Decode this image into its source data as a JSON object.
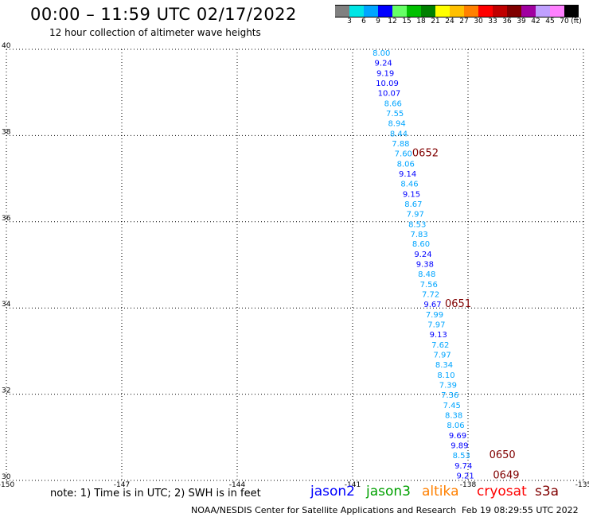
{
  "header": {
    "title": "00:00 – 11:59 UTC 02/17/2022",
    "subtitle": "12 hour collection of altimeter wave heights"
  },
  "color_scale": {
    "colors": [
      "#808080",
      "#00e5e5",
      "#00a5ff",
      "#0000ff",
      "#66ff66",
      "#00c000",
      "#008000",
      "#ffff00",
      "#ffc000",
      "#ff8000",
      "#ff0000",
      "#c00000",
      "#800000",
      "#a000a0",
      "#c0a0ff",
      "#ff80ff",
      "#000000"
    ],
    "labels": [
      "3",
      "6",
      "9",
      "12",
      "15",
      "18",
      "21",
      "24",
      "27",
      "30",
      "33",
      "36",
      "39",
      "42",
      "45",
      "70"
    ],
    "unit": "(ft)"
  },
  "map": {
    "lon_range": [
      -150,
      -135
    ],
    "lat_range": [
      30,
      40
    ],
    "lon_ticks": [
      "-150",
      "-147",
      "-144",
      "-141",
      "-138",
      "-135"
    ],
    "lat_ticks": [
      "30",
      "32",
      "34",
      "36",
      "38",
      "40"
    ],
    "gridlines": "dotted"
  },
  "track": {
    "points": [
      {
        "v": "8.00",
        "lon": -140.25,
        "lat": 39.85,
        "c": "#00a5ff"
      },
      {
        "v": "9.24",
        "lon": -140.2,
        "lat": 39.62,
        "c": "#0000ff"
      },
      {
        "v": "9.19",
        "lon": -140.15,
        "lat": 39.38,
        "c": "#0000ff"
      },
      {
        "v": "10.09",
        "lon": -140.1,
        "lat": 39.15,
        "c": "#0000ff"
      },
      {
        "v": "10.07",
        "lon": -140.05,
        "lat": 38.92,
        "c": "#0000ff"
      },
      {
        "v": "8.66",
        "lon": -139.95,
        "lat": 38.68,
        "c": "#00a5ff"
      },
      {
        "v": "7.55",
        "lon": -139.9,
        "lat": 38.45,
        "c": "#00a5ff"
      },
      {
        "v": "8.94",
        "lon": -139.85,
        "lat": 38.22,
        "c": "#00a5ff"
      },
      {
        "v": "8.44",
        "lon": -139.8,
        "lat": 37.98,
        "c": "#00a5ff"
      },
      {
        "v": "7.88",
        "lon": -139.75,
        "lat": 37.75,
        "c": "#00a5ff"
      },
      {
        "v": "7.60",
        "lon": -139.68,
        "lat": 37.52,
        "c": "#00a5ff"
      },
      {
        "v": "8.06",
        "lon": -139.62,
        "lat": 37.28,
        "c": "#00a5ff"
      },
      {
        "v": "9.14",
        "lon": -139.57,
        "lat": 37.05,
        "c": "#0000ff"
      },
      {
        "v": "8.46",
        "lon": -139.52,
        "lat": 36.82,
        "c": "#00a5ff"
      },
      {
        "v": "9.15",
        "lon": -139.47,
        "lat": 36.58,
        "c": "#0000ff"
      },
      {
        "v": "8.67",
        "lon": -139.42,
        "lat": 36.35,
        "c": "#00a5ff"
      },
      {
        "v": "7.97",
        "lon": -139.37,
        "lat": 36.12,
        "c": "#00a5ff"
      },
      {
        "v": "8.53",
        "lon": -139.32,
        "lat": 35.88,
        "c": "#00a5ff"
      },
      {
        "v": "7.83",
        "lon": -139.27,
        "lat": 35.65,
        "c": "#00a5ff"
      },
      {
        "v": "8.60",
        "lon": -139.22,
        "lat": 35.42,
        "c": "#00a5ff"
      },
      {
        "v": "9.24",
        "lon": -139.17,
        "lat": 35.18,
        "c": "#0000ff"
      },
      {
        "v": "9.38",
        "lon": -139.12,
        "lat": 34.95,
        "c": "#0000ff"
      },
      {
        "v": "8.48",
        "lon": -139.07,
        "lat": 34.72,
        "c": "#00a5ff"
      },
      {
        "v": "7.56",
        "lon": -139.02,
        "lat": 34.48,
        "c": "#00a5ff"
      },
      {
        "v": "7.72",
        "lon": -138.97,
        "lat": 34.25,
        "c": "#00a5ff"
      },
      {
        "v": "9.67",
        "lon": -138.92,
        "lat": 34.02,
        "c": "#0000ff"
      },
      {
        "v": "7.99",
        "lon": -138.87,
        "lat": 33.78,
        "c": "#00a5ff"
      },
      {
        "v": "7.97",
        "lon": -138.82,
        "lat": 33.55,
        "c": "#00a5ff"
      },
      {
        "v": "9.13",
        "lon": -138.77,
        "lat": 33.32,
        "c": "#0000ff"
      },
      {
        "v": "7.62",
        "lon": -138.72,
        "lat": 33.08,
        "c": "#00a5ff"
      },
      {
        "v": "7.97",
        "lon": -138.67,
        "lat": 32.85,
        "c": "#00a5ff"
      },
      {
        "v": "8.34",
        "lon": -138.62,
        "lat": 32.62,
        "c": "#00a5ff"
      },
      {
        "v": "8.10",
        "lon": -138.57,
        "lat": 32.38,
        "c": "#00a5ff"
      },
      {
        "v": "7.39",
        "lon": -138.52,
        "lat": 32.15,
        "c": "#00a5ff"
      },
      {
        "v": "7.36",
        "lon": -138.47,
        "lat": 31.92,
        "c": "#00a5ff"
      },
      {
        "v": "7.45",
        "lon": -138.42,
        "lat": 31.68,
        "c": "#00a5ff"
      },
      {
        "v": "8.38",
        "lon": -138.37,
        "lat": 31.45,
        "c": "#00a5ff"
      },
      {
        "v": "8.06",
        "lon": -138.32,
        "lat": 31.22,
        "c": "#00a5ff"
      },
      {
        "v": "9.69",
        "lon": -138.27,
        "lat": 30.98,
        "c": "#0000ff"
      },
      {
        "v": "9.89",
        "lon": -138.22,
        "lat": 30.75,
        "c": "#0000ff"
      },
      {
        "v": "8.53",
        "lon": -138.17,
        "lat": 30.52,
        "c": "#00a5ff"
      },
      {
        "v": "9.74",
        "lon": -138.12,
        "lat": 30.28,
        "c": "#0000ff"
      },
      {
        "v": "9.21",
        "lon": -138.07,
        "lat": 30.05,
        "c": "#0000ff"
      }
    ],
    "times": [
      {
        "t": "0652",
        "lon": -139.45,
        "lat": 37.52
      },
      {
        "t": "0651",
        "lon": -138.6,
        "lat": 34.02
      },
      {
        "t": "0650",
        "lon": -137.45,
        "lat": 30.52
      },
      {
        "t": "0649",
        "lon": -137.35,
        "lat": 30.05
      }
    ]
  },
  "footer": {
    "note": "note:  1) Time is in UTC;  2) SWH is in feet",
    "satellites": [
      {
        "name": "jason2",
        "color": "#0000ff"
      },
      {
        "name": "jason3",
        "color": "#00a000"
      },
      {
        "name": "altika",
        "color": "#ff8000"
      },
      {
        "name": "cryosat",
        "color": "#ff0000"
      },
      {
        "name": "s3a",
        "color": "#800000"
      }
    ],
    "credit": "NOAA/NESDIS Center for Satellite Applications and Research",
    "stamp": "Feb 19 08:29:55 UTC 2022"
  }
}
